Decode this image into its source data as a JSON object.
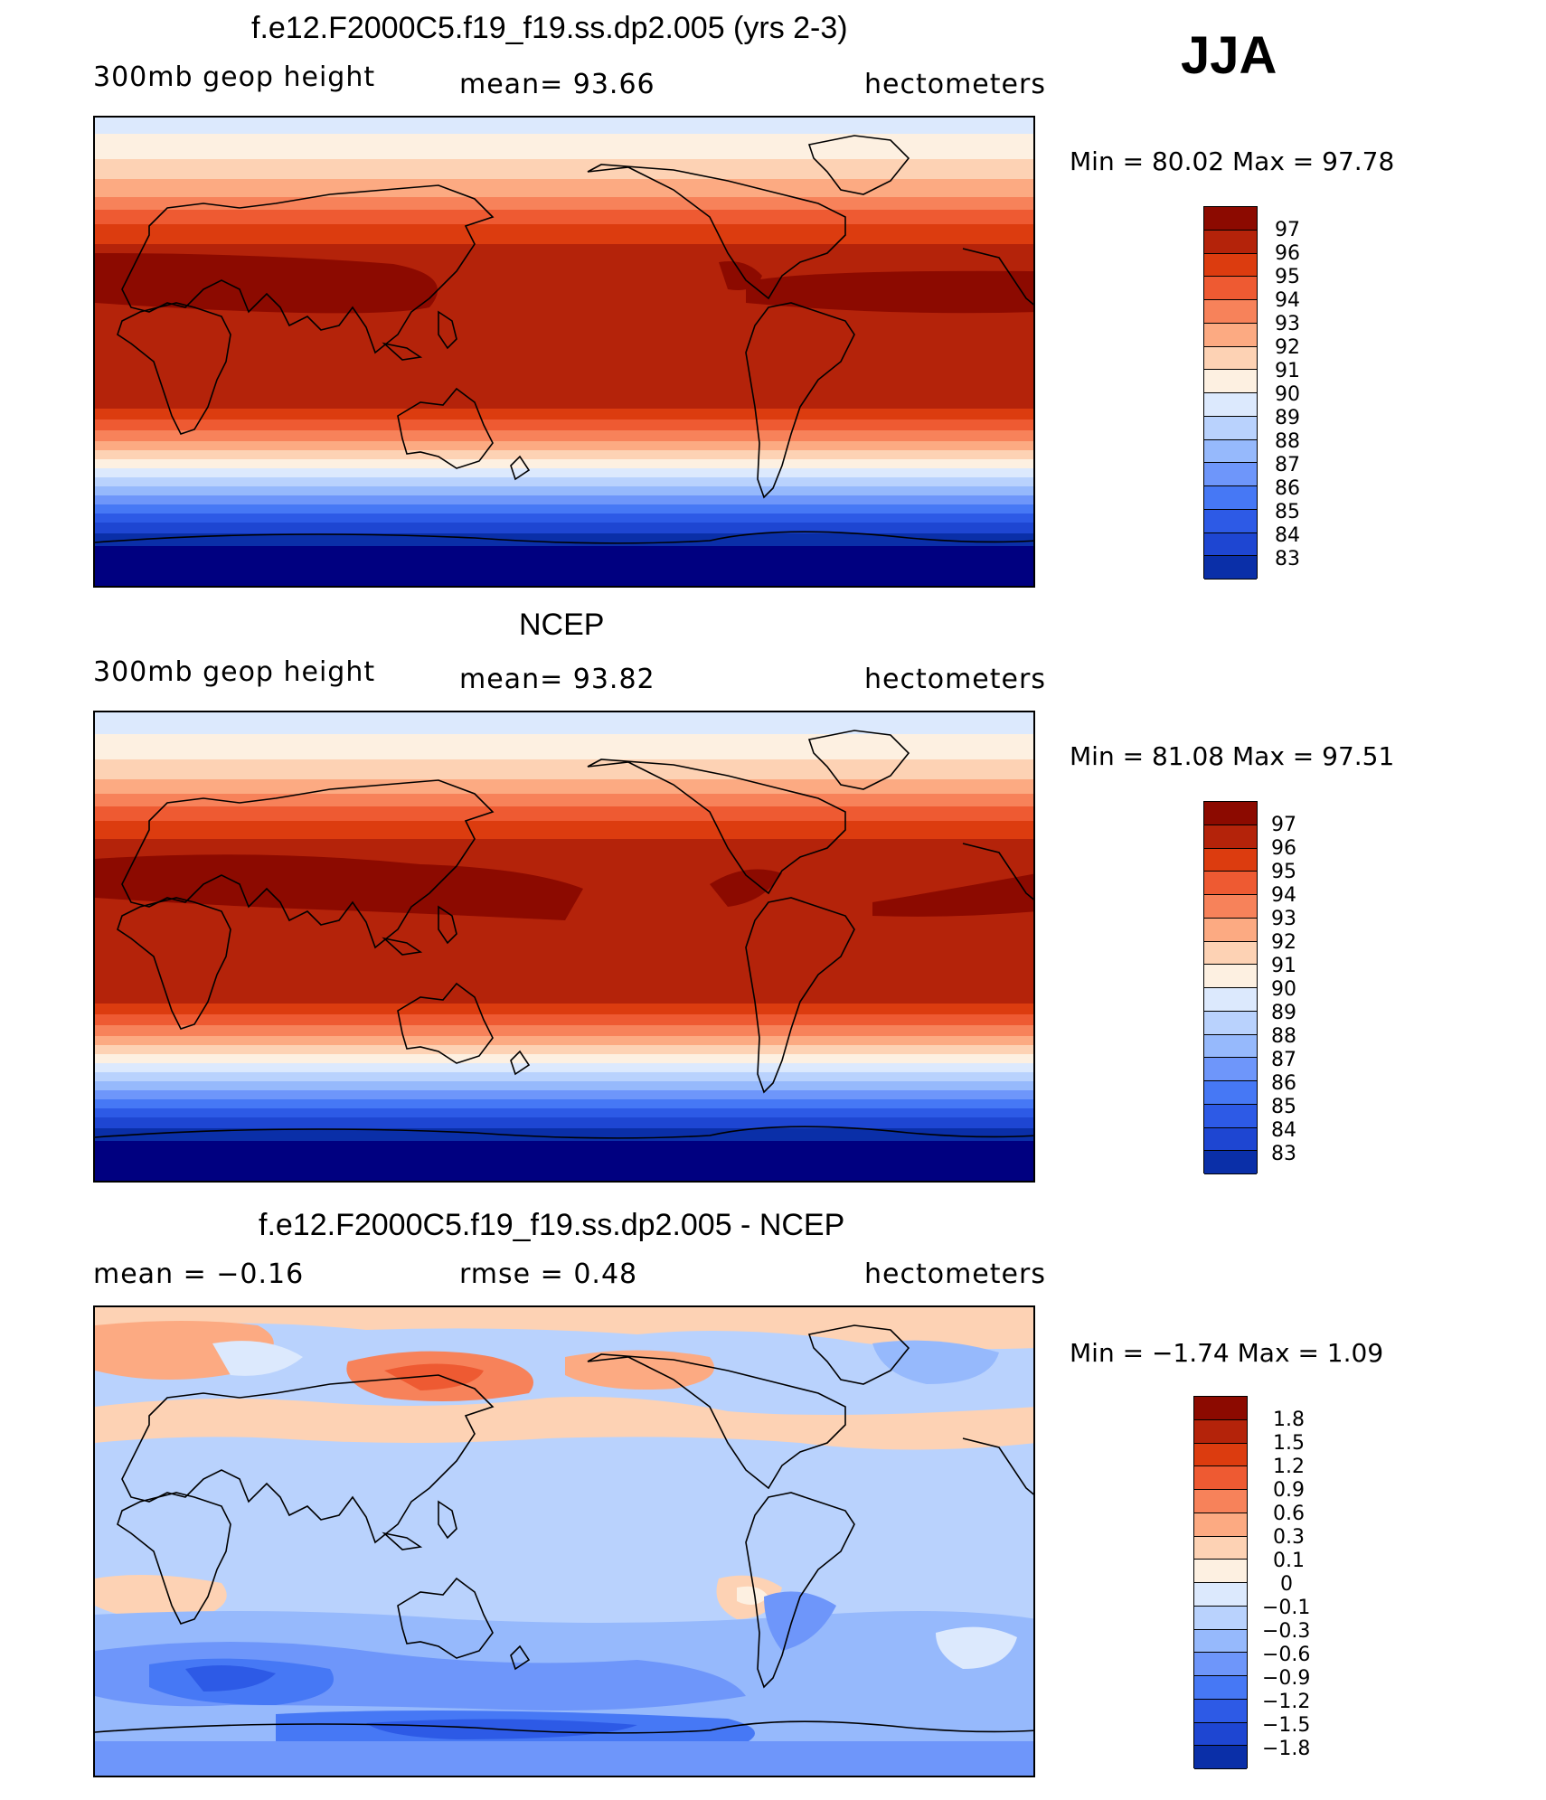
{
  "season": "JJA",
  "scale_colors": [
    "#000080",
    "#0a2fa8",
    "#1e46d2",
    "#2d5ae6",
    "#4678f5",
    "#6e96fa",
    "#96b9fc",
    "#b9d2fd",
    "#dce9fd",
    "#fdf0e1",
    "#fdd2b4",
    "#fcaa82",
    "#f7825a",
    "#ee5a32",
    "#dc3c0f",
    "#b4230a",
    "#8c0a00"
  ],
  "panels": [
    {
      "title": "f.e12.F2000C5.f19_f19.ss.dp2.005 (yrs 2-3)",
      "left_label": "300mb  geop  height",
      "center_label": "mean=   93.66",
      "units": "hectometers",
      "minmax": "Min  =    80.02  Max  =    97.78",
      "levels": [
        "97",
        "96",
        "95",
        "94",
        "93",
        "92",
        "91",
        "90",
        "89",
        "88",
        "87",
        "86",
        "85",
        "84",
        "83"
      ]
    },
    {
      "title": "NCEP",
      "left_label": "300mb  geop  height",
      "center_label": "mean=   93.82",
      "units": "hectometers",
      "minmax": "Min  =    81.08  Max  =    97.51",
      "levels": [
        "97",
        "96",
        "95",
        "94",
        "93",
        "92",
        "91",
        "90",
        "89",
        "88",
        "87",
        "86",
        "85",
        "84",
        "83"
      ]
    },
    {
      "title": "f.e12.F2000C5.f19_f19.ss.dp2.005 - NCEP",
      "left_label": "mean  =    −0.16",
      "center_label": "rmse  =    0.48",
      "units": "hectometers",
      "minmax": "Min  =   −1.74  Max  =     1.09",
      "levels": [
        "1.8",
        "1.5",
        "1.2",
        "0.9",
        "0.6",
        "0.3",
        "0.1",
        "0",
        "−0.1",
        "−0.3",
        "−0.6",
        "−0.9",
        "−1.2",
        "−1.5",
        "−1.8"
      ]
    }
  ]
}
